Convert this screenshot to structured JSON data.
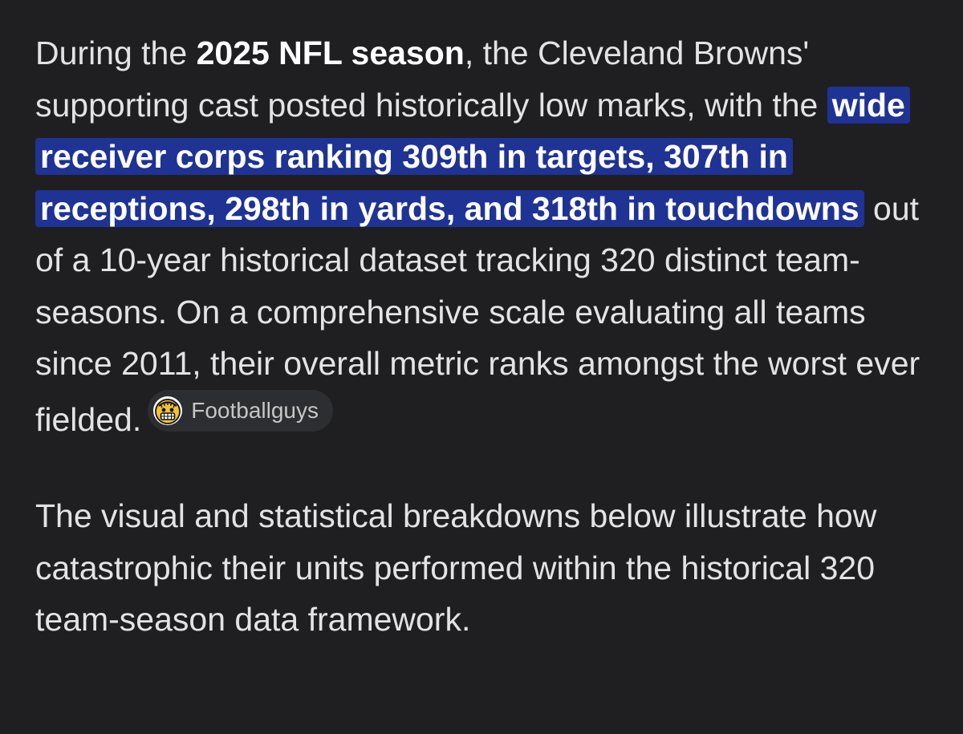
{
  "paragraph1": {
    "text_1": "During the ",
    "bold": "2025 NFL season",
    "text_2": ", the Cleveland Browns' supporting cast posted historically low marks, with the ",
    "highlight": "wide receiver corps ranking 309th in targets, 307th in receptions, 298th in yards, and 318th in touchdowns",
    "text_3": " out of a 10-year historical dataset tracking 320 distinct team-seasons. On a comprehensive scale evaluating all teams since 2011, their overall metric ranks amongst the worst ever fielded."
  },
  "source_chip": {
    "label": "Footballguys",
    "icon": "footballguys-logo-icon"
  },
  "paragraph2": {
    "text": "The visual and statistical breakdowns below illustrate how catastrophic their units performed within the historical 320 team-season data framework."
  },
  "colors": {
    "background": "#1f1f22",
    "text": "#e3e3e3",
    "highlight": "#1f3394",
    "chip_background": "#2d2e31"
  }
}
